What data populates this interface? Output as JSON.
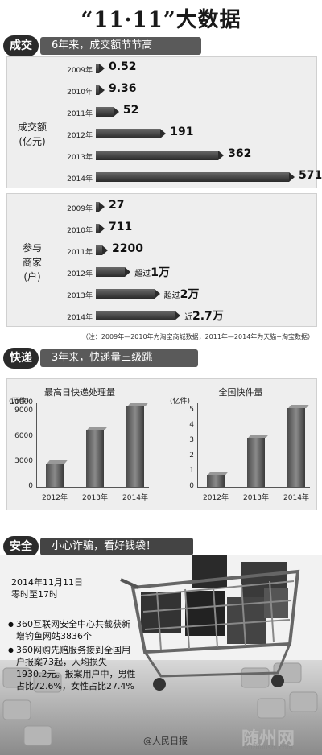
{
  "title": "“11·11”大数据",
  "sections": {
    "turnover": {
      "badge": "成交",
      "banner": "6年来，成交额节节高"
    },
    "express": {
      "badge": "快递",
      "banner": "3年来，快递量三级跳"
    },
    "safety": {
      "badge": "安全",
      "banner": "小心诈骗，看好钱袋！"
    }
  },
  "turnover_label": [
    "成交额",
    "(亿元)"
  ],
  "merchant_label": [
    "参与",
    "商家",
    "(户)"
  ],
  "note": "（注：2009年—2010年为淘宝商城数据，2011年—2014年为天猫+淘宝数据）",
  "safety": {
    "date": [
      "2014年11月11日",
      "零时至17时"
    ],
    "bullets": [
      "360互联网安全中心共截获新增钓鱼网站3836个",
      "360网购先赔服务接到全国用户报案73起，人均损失1930.2元。报案用户中，男性占比72.6%，女性占比27.4%"
    ]
  },
  "footer": {
    "credit": "@人民日报",
    "watermark": "随州网",
    "watermark_url": "suizhoushi.com"
  },
  "chart_data": [
    {
      "type": "bar",
      "orientation": "horizontal",
      "categories": [
        "2009年",
        "2010年",
        "2011年",
        "2012年",
        "2013年",
        "2014年"
      ],
      "values": [
        0.52,
        9.36,
        52,
        191,
        362,
        571
      ],
      "value_labels": [
        "0.52",
        "9.36",
        "52",
        "191",
        "362",
        "571"
      ],
      "ylabel": "成交额(亿元)"
    },
    {
      "type": "bar",
      "orientation": "horizontal",
      "categories": [
        "2009年",
        "2010年",
        "2011年",
        "2012年",
        "2013年",
        "2014年"
      ],
      "values": [
        27,
        711,
        2200,
        10000,
        20000,
        27000
      ],
      "value_labels": [
        "27",
        "711",
        "2200",
        "超过1万",
        "超过2万",
        "近2.7万"
      ],
      "ylabel": "参与商家(户)"
    },
    {
      "type": "bar",
      "title": "最高日快递处理量",
      "unit": "(万件)",
      "categories": [
        "2012年",
        "2013年",
        "2014年"
      ],
      "values": [
        2800,
        6800,
        9600
      ],
      "ylim": [
        0,
        10000
      ],
      "yticks": [
        0,
        3000,
        6000,
        9000,
        10000
      ],
      "ytick_labels": [
        "0",
        "3000",
        "6000",
        "9000",
        "10000"
      ]
    },
    {
      "type": "bar",
      "title": "全国快件量",
      "unit": "(亿件)",
      "categories": [
        "2012年",
        "2013年",
        "2014年"
      ],
      "values": [
        0.8,
        3.2,
        5.2
      ],
      "ylim": [
        0,
        5.5
      ],
      "yticks": [
        0,
        1,
        2,
        3,
        4,
        5
      ],
      "ytick_labels": [
        "0",
        "1",
        "2",
        "3",
        "4",
        "5"
      ]
    }
  ]
}
